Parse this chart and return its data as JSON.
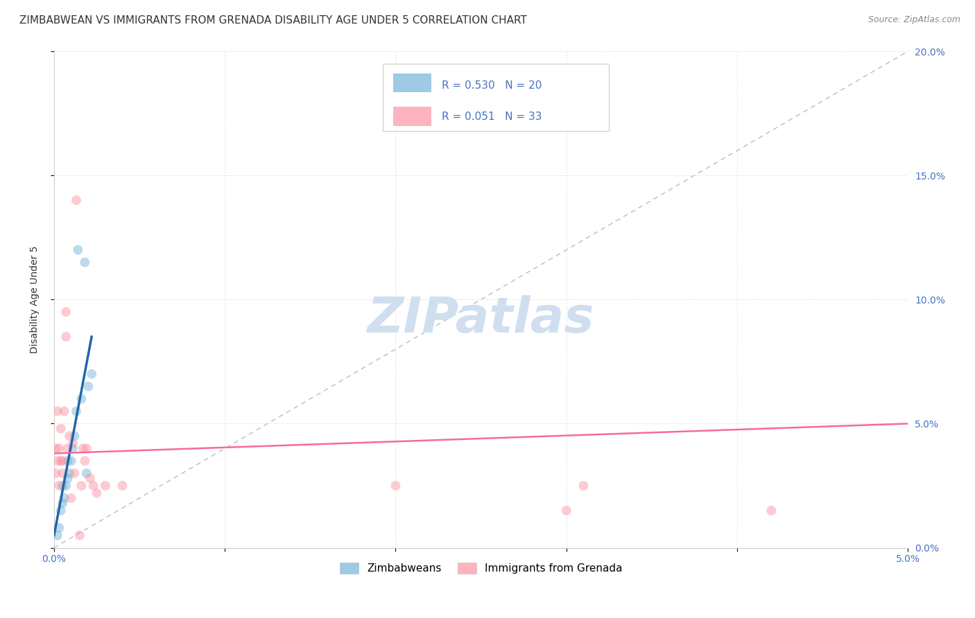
{
  "title": "ZIMBABWEAN VS IMMIGRANTS FROM GRENADA DISABILITY AGE UNDER 5 CORRELATION CHART",
  "source": "Source: ZipAtlas.com",
  "ylabel": "Disability Age Under 5",
  "watermark": "ZIPatlas",
  "legend_blue_r": "R = 0.530",
  "legend_blue_n": "N = 20",
  "legend_pink_r": "R = 0.051",
  "legend_pink_n": "N = 33",
  "legend_label_blue": "Zimbabweans",
  "legend_label_pink": "Immigrants from Grenada",
  "xlim": [
    0.0,
    0.05
  ],
  "ylim": [
    0.0,
    0.2
  ],
  "xticks": [
    0.0,
    0.01,
    0.02,
    0.03,
    0.04,
    0.05
  ],
  "yticks": [
    0.0,
    0.05,
    0.1,
    0.15,
    0.2
  ],
  "xtick_labels": [
    "0.0%",
    "",
    "",
    "",
    "",
    "5.0%"
  ],
  "ytick_labels_right": [
    "0.0%",
    "5.0%",
    "10.0%",
    "15.0%",
    "20.0%"
  ],
  "blue_scatter_x": [
    0.0002,
    0.0003,
    0.0004,
    0.0005,
    0.0005,
    0.0006,
    0.0007,
    0.0008,
    0.0008,
    0.0009,
    0.001,
    0.0011,
    0.0012,
    0.0013,
    0.0014,
    0.0016,
    0.0018,
    0.0019,
    0.002,
    0.0022
  ],
  "blue_scatter_y": [
    0.005,
    0.008,
    0.015,
    0.018,
    0.025,
    0.02,
    0.025,
    0.028,
    0.035,
    0.03,
    0.035,
    0.04,
    0.045,
    0.055,
    0.12,
    0.06,
    0.115,
    0.03,
    0.065,
    0.07
  ],
  "pink_scatter_x": [
    0.0001,
    0.0001,
    0.0002,
    0.0002,
    0.0003,
    0.0003,
    0.0004,
    0.0004,
    0.0005,
    0.0005,
    0.0006,
    0.0007,
    0.0007,
    0.0008,
    0.0009,
    0.001,
    0.0011,
    0.0012,
    0.0013,
    0.0015,
    0.0016,
    0.0017,
    0.0018,
    0.0019,
    0.0021,
    0.0023,
    0.0025,
    0.003,
    0.004,
    0.02,
    0.03,
    0.031,
    0.042
  ],
  "pink_scatter_y": [
    0.03,
    0.04,
    0.035,
    0.055,
    0.025,
    0.04,
    0.035,
    0.048,
    0.03,
    0.035,
    0.055,
    0.085,
    0.095,
    0.04,
    0.045,
    0.02,
    0.042,
    0.03,
    0.14,
    0.005,
    0.025,
    0.04,
    0.035,
    0.04,
    0.028,
    0.025,
    0.022,
    0.025,
    0.025,
    0.025,
    0.015,
    0.025,
    0.015
  ],
  "blue_line_x": [
    0.0,
    0.0022
  ],
  "blue_line_y": [
    0.005,
    0.085
  ],
  "pink_line_x": [
    0.0,
    0.05
  ],
  "pink_line_y": [
    0.038,
    0.05
  ],
  "bg_color": "#ffffff",
  "scatter_alpha": 0.45,
  "scatter_size": 100,
  "blue_color": "#6baed6",
  "pink_color": "#fc8d9c",
  "blue_line_color": "#2166ac",
  "pink_line_color": "#f768a1",
  "diagonal_color": "#bbbbbb",
  "title_fontsize": 11,
  "axis_label_fontsize": 10,
  "tick_fontsize": 10,
  "legend_fontsize": 11,
  "watermark_fontsize": 52,
  "watermark_color": "#d0dff0",
  "tick_color": "#4472c4",
  "ylabel_color": "#333333"
}
